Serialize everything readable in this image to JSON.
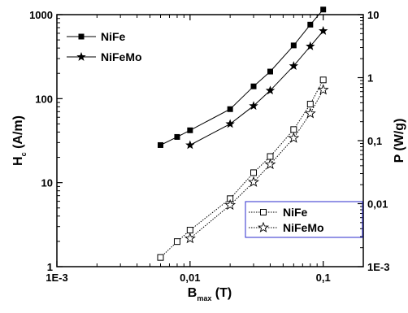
{
  "chart_data": {
    "type": "line",
    "x_scale": "log",
    "xlim": [
      0.001,
      0.2
    ],
    "x_ticks": [
      {
        "value": 0.001,
        "label": "1E-3"
      },
      {
        "value": 0.01,
        "label": "0,01"
      },
      {
        "value": 0.1,
        "label": "0,1"
      }
    ],
    "xlabel": {
      "main": "B",
      "sub": "max",
      "rest": " (T)"
    },
    "left_axis": {
      "scale": "log",
      "ylim": [
        1,
        1000
      ],
      "ticks": [
        {
          "value": 1,
          "label": "1"
        },
        {
          "value": 10,
          "label": "10"
        },
        {
          "value": 100,
          "label": "100"
        },
        {
          "value": 1000,
          "label": "1000"
        }
      ],
      "label": {
        "main": "H",
        "sub": "c",
        "rest": " (A/m)"
      }
    },
    "right_axis": {
      "scale": "log",
      "ylim": [
        0.001,
        10
      ],
      "ticks": [
        {
          "value": 0.001,
          "label": "1E-3"
        },
        {
          "value": 0.01,
          "label": "0,01"
        },
        {
          "value": 0.1,
          "label": "0,1"
        },
        {
          "value": 1,
          "label": "1"
        },
        {
          "value": 10,
          "label": "10"
        }
      ],
      "label": "P (W/g)"
    },
    "series": [
      {
        "name": "NiFe",
        "axis": "left",
        "marker": "square-filled",
        "line": "solid",
        "x": [
          0.006,
          0.008,
          0.01,
          0.02,
          0.03,
          0.04,
          0.06,
          0.08,
          0.1
        ],
        "y": [
          28,
          35,
          42,
          75,
          140,
          210,
          430,
          760,
          1150
        ]
      },
      {
        "name": "NiFeMo",
        "axis": "left",
        "marker": "star-filled",
        "line": "solid",
        "x": [
          0.01,
          0.02,
          0.03,
          0.04,
          0.06,
          0.08,
          0.1
        ],
        "y": [
          28,
          50,
          82,
          125,
          245,
          420,
          640
        ]
      },
      {
        "name": "NiFe",
        "axis": "right",
        "marker": "square-open",
        "line": "dotted",
        "x": [
          0.006,
          0.008,
          0.01,
          0.02,
          0.03,
          0.04,
          0.06,
          0.08,
          0.1
        ],
        "y": [
          0.0014,
          0.0025,
          0.0038,
          0.012,
          0.031,
          0.056,
          0.15,
          0.38,
          0.92
        ]
      },
      {
        "name": "NiFeMo",
        "axis": "right",
        "marker": "star-open",
        "line": "dotted",
        "x": [
          0.01,
          0.02,
          0.03,
          0.04,
          0.06,
          0.08,
          0.1
        ],
        "y": [
          0.0028,
          0.0095,
          0.022,
          0.042,
          0.11,
          0.27,
          0.64
        ]
      }
    ],
    "legends": [
      {
        "placement": "top-left",
        "boxed": false,
        "entries": [
          {
            "label": "NiFe",
            "marker": "square-filled",
            "line": "solid"
          },
          {
            "label": "NiFeMo",
            "marker": "star-filled",
            "line": "solid"
          }
        ]
      },
      {
        "placement": "bottom-right",
        "boxed": true,
        "border_color": "#2b2bcc",
        "entries": [
          {
            "label": "NiFe",
            "marker": "square-open",
            "line": "dotted"
          },
          {
            "label": "NiFeMo",
            "marker": "star-open",
            "line": "dotted"
          }
        ]
      }
    ],
    "grid": false
  }
}
